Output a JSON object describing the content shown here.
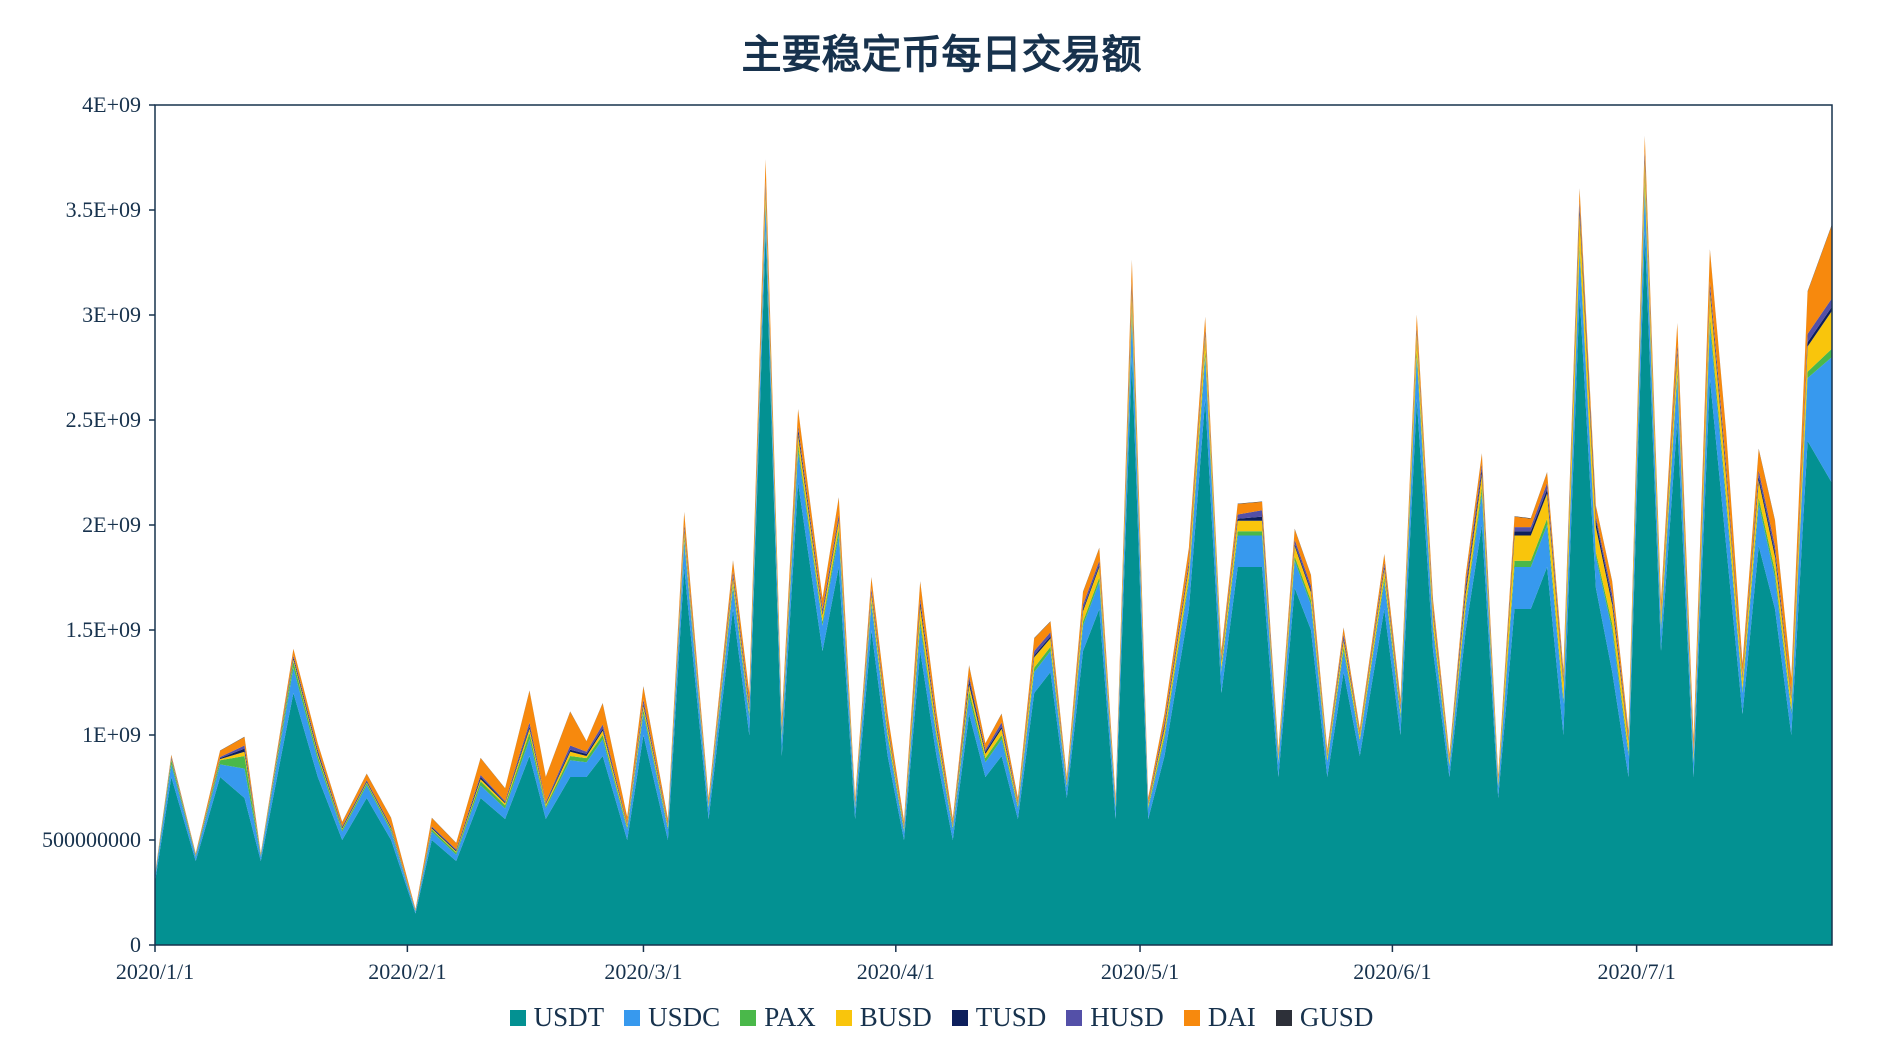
{
  "chart_data": {
    "type": "area",
    "stacked": true,
    "title": "主要稳定币每日交易额",
    "xlabel": "",
    "ylabel": "",
    "ylim": [
      0,
      4000000000
    ],
    "grid": false,
    "legend_position": "bottom",
    "y_ticks": [
      {
        "value": 0,
        "label": "0"
      },
      {
        "value": 500000000,
        "label": "500000000"
      },
      {
        "value": 1000000000,
        "label": "1E+09"
      },
      {
        "value": 1500000000,
        "label": "1.5E+09"
      },
      {
        "value": 2000000000,
        "label": "2E+09"
      },
      {
        "value": 2500000000,
        "label": "2.5E+09"
      },
      {
        "value": 3000000000,
        "label": "3E+09"
      },
      {
        "value": 3500000000,
        "label": "3.5E+09"
      },
      {
        "value": 4000000000,
        "label": "4E+09"
      }
    ],
    "x_ticks": [
      {
        "date": "2020-01-01",
        "label": "2020/1/1"
      },
      {
        "date": "2020-02-01",
        "label": "2020/2/1"
      },
      {
        "date": "2020-03-01",
        "label": "2020/3/1"
      },
      {
        "date": "2020-04-01",
        "label": "2020/4/1"
      },
      {
        "date": "2020-05-01",
        "label": "2020/5/1"
      },
      {
        "date": "2020-06-01",
        "label": "2020/6/1"
      },
      {
        "date": "2020-07-01",
        "label": "2020/7/1"
      }
    ],
    "x_start": "2020-01-01",
    "x_end": "2020-07-25",
    "value_unit": "1E+08",
    "x": [
      "2020-01-01",
      "2020-01-03",
      "2020-01-06",
      "2020-01-09",
      "2020-01-12",
      "2020-01-14",
      "2020-01-18",
      "2020-01-21",
      "2020-01-24",
      "2020-01-27",
      "2020-01-30",
      "2020-02-02",
      "2020-02-04",
      "2020-02-07",
      "2020-02-10",
      "2020-02-13",
      "2020-02-16",
      "2020-02-18",
      "2020-02-21",
      "2020-02-23",
      "2020-02-25",
      "2020-02-28",
      "2020-03-01",
      "2020-03-04",
      "2020-03-06",
      "2020-03-09",
      "2020-03-12",
      "2020-03-14",
      "2020-03-16",
      "2020-03-18",
      "2020-03-20",
      "2020-03-23",
      "2020-03-25",
      "2020-03-27",
      "2020-03-29",
      "2020-03-31",
      "2020-04-02",
      "2020-04-04",
      "2020-04-06",
      "2020-04-08",
      "2020-04-10",
      "2020-04-12",
      "2020-04-14",
      "2020-04-16",
      "2020-04-18",
      "2020-04-20",
      "2020-04-22",
      "2020-04-24",
      "2020-04-26",
      "2020-04-28",
      "2020-04-30",
      "2020-05-02",
      "2020-05-04",
      "2020-05-07",
      "2020-05-09",
      "2020-05-11",
      "2020-05-13",
      "2020-05-16",
      "2020-05-18",
      "2020-05-20",
      "2020-05-22",
      "2020-05-24",
      "2020-05-26",
      "2020-05-28",
      "2020-05-31",
      "2020-06-02",
      "2020-06-04",
      "2020-06-06",
      "2020-06-08",
      "2020-06-10",
      "2020-06-12",
      "2020-06-14",
      "2020-06-16",
      "2020-06-18",
      "2020-06-20",
      "2020-06-22",
      "2020-06-24",
      "2020-06-26",
      "2020-06-28",
      "2020-06-30",
      "2020-07-02",
      "2020-07-04",
      "2020-07-06",
      "2020-07-08",
      "2020-07-10",
      "2020-07-12",
      "2020-07-14",
      "2020-07-16",
      "2020-07-18",
      "2020-07-20",
      "2020-07-22",
      "2020-07-25"
    ],
    "series": [
      {
        "name": "USDT",
        "color": "#039192",
        "values": [
          3.0,
          8.0,
          4.0,
          8.0,
          7.0,
          4.0,
          12.0,
          8.0,
          5.0,
          7.0,
          5.0,
          1.5,
          5.0,
          4.0,
          7.0,
          6.0,
          9.0,
          6.0,
          8.0,
          8.0,
          9.0,
          5.0,
          10.0,
          5.0,
          18.0,
          6.0,
          16.0,
          10.0,
          34.0,
          9.0,
          22.0,
          14.0,
          18.0,
          6.0,
          15.0,
          9.0,
          5.0,
          14.0,
          9.0,
          5.0,
          11.0,
          8.0,
          9.0,
          6.0,
          12.0,
          13.0,
          7.0,
          14.0,
          16.0,
          6.0,
          28.0,
          6.0,
          9.0,
          16.0,
          26.0,
          12.0,
          18.0,
          18.0,
          8.0,
          17.0,
          15.0,
          8.0,
          13.0,
          9.0,
          16.0,
          10.0,
          26.0,
          14.0,
          8.0,
          15.0,
          20.0,
          7.0,
          16.0,
          16.0,
          18.0,
          10.0,
          31.0,
          17.0,
          13.0,
          8.0,
          34.0,
          14.0,
          25.0,
          8.0,
          27.0,
          19.0,
          11.0,
          19.0,
          16.0,
          10.0,
          24.0,
          22.0
        ]
      },
      {
        "name": "USDC",
        "color": "#3799ee",
        "values": [
          0.2,
          0.6,
          0.2,
          0.6,
          1.4,
          0.2,
          1.2,
          0.8,
          0.4,
          0.6,
          0.4,
          0.1,
          0.4,
          0.3,
          0.6,
          0.5,
          0.8,
          0.5,
          0.8,
          0.7,
          0.8,
          0.5,
          1.0,
          0.5,
          1.2,
          0.5,
          1.0,
          0.8,
          1.2,
          0.8,
          1.5,
          1.2,
          1.5,
          0.5,
          1.2,
          0.8,
          0.4,
          1.2,
          0.8,
          0.5,
          0.8,
          0.7,
          0.8,
          0.5,
          1.0,
          1.0,
          0.5,
          1.2,
          1.3,
          0.5,
          2.0,
          0.5,
          0.8,
          1.3,
          2.0,
          1.0,
          1.5,
          1.5,
          0.7,
          1.3,
          1.2,
          0.7,
          1.0,
          0.7,
          1.3,
          0.8,
          2.0,
          1.0,
          0.5,
          1.0,
          1.5,
          0.5,
          2.0,
          2.0,
          2.0,
          1.5,
          2.0,
          1.5,
          2.0,
          1.0,
          2.0,
          1.0,
          2.0,
          0.7,
          2.5,
          2.0,
          1.0,
          2.0,
          1.5,
          1.0,
          3.0,
          6.0
        ]
      },
      {
        "name": "PAX",
        "color": "#4ab84a",
        "values": [
          0.05,
          0.2,
          0.05,
          0.2,
          0.6,
          0.05,
          0.3,
          0.2,
          0.1,
          0.1,
          0.1,
          0.02,
          0.1,
          0.1,
          0.2,
          0.15,
          0.3,
          0.1,
          0.2,
          0.2,
          0.2,
          0.1,
          0.2,
          0.1,
          0.2,
          0.1,
          0.2,
          0.2,
          0.3,
          0.2,
          0.3,
          0.2,
          0.3,
          0.1,
          0.2,
          0.2,
          0.1,
          0.3,
          0.2,
          0.1,
          0.3,
          0.2,
          0.2,
          0.1,
          0.2,
          0.2,
          0.1,
          0.2,
          0.2,
          0.1,
          0.3,
          0.1,
          0.2,
          0.2,
          0.3,
          0.2,
          0.2,
          0.2,
          0.1,
          0.2,
          0.2,
          0.1,
          0.2,
          0.1,
          0.2,
          0.2,
          0.3,
          0.2,
          0.1,
          0.2,
          0.3,
          0.1,
          0.3,
          0.3,
          0.3,
          0.2,
          0.3,
          0.2,
          0.3,
          0.2,
          0.3,
          0.2,
          0.3,
          0.1,
          0.4,
          0.3,
          0.2,
          0.3,
          0.3,
          0.2,
          0.3,
          0.4
        ]
      },
      {
        "name": "BUSD",
        "color": "#f9c50c",
        "values": [
          0.02,
          0.05,
          0.02,
          0.05,
          0.2,
          0.02,
          0.1,
          0.1,
          0.05,
          0.05,
          0.05,
          0.01,
          0.05,
          0.05,
          0.1,
          0.1,
          0.2,
          0.1,
          0.2,
          0.1,
          0.2,
          0.1,
          0.2,
          0.1,
          0.3,
          0.1,
          0.3,
          0.2,
          0.5,
          0.2,
          0.5,
          0.3,
          0.4,
          0.1,
          0.3,
          0.3,
          0.1,
          0.6,
          0.3,
          0.1,
          0.3,
          0.2,
          0.3,
          0.1,
          0.5,
          0.4,
          0.1,
          0.5,
          0.5,
          0.1,
          0.8,
          0.1,
          0.3,
          0.5,
          0.7,
          0.3,
          0.5,
          0.5,
          0.2,
          0.5,
          0.4,
          0.2,
          0.3,
          0.2,
          0.4,
          0.2,
          0.8,
          0.5,
          0.2,
          0.5,
          0.6,
          0.2,
          1.2,
          1.2,
          1.2,
          0.8,
          1.5,
          1.2,
          0.9,
          0.5,
          1.0,
          0.5,
          0.8,
          0.3,
          1.2,
          1.0,
          0.5,
          0.8,
          0.7,
          0.5,
          1.2,
          1.8
        ]
      },
      {
        "name": "TUSD",
        "color": "#0d1f5c",
        "values": [
          0.02,
          0.05,
          0.02,
          0.05,
          0.15,
          0.02,
          0.1,
          0.1,
          0.05,
          0.05,
          0.05,
          0.01,
          0.05,
          0.05,
          0.1,
          0.05,
          0.1,
          0.05,
          0.1,
          0.1,
          0.1,
          0.05,
          0.1,
          0.05,
          0.1,
          0.05,
          0.1,
          0.1,
          0.2,
          0.1,
          0.2,
          0.1,
          0.1,
          0.05,
          0.1,
          0.1,
          0.05,
          0.2,
          0.1,
          0.05,
          0.2,
          0.1,
          0.1,
          0.05,
          0.1,
          0.1,
          0.05,
          0.1,
          0.1,
          0.05,
          0.2,
          0.05,
          0.1,
          0.1,
          0.1,
          0.1,
          0.1,
          0.2,
          0.05,
          0.1,
          0.1,
          0.05,
          0.1,
          0.05,
          0.1,
          0.1,
          0.1,
          0.1,
          0.05,
          0.2,
          0.2,
          0.05,
          0.2,
          0.2,
          0.2,
          0.1,
          0.3,
          0.3,
          0.2,
          0.1,
          0.2,
          0.1,
          0.2,
          0.1,
          0.2,
          0.2,
          0.1,
          0.2,
          0.2,
          0.1,
          0.2,
          0.2
        ]
      },
      {
        "name": "HUSD",
        "color": "#5450a8",
        "values": [
          0.02,
          0.05,
          0.02,
          0.05,
          0.15,
          0.02,
          0.1,
          0.1,
          0.05,
          0.05,
          0.05,
          0.01,
          0.05,
          0.05,
          0.1,
          0.05,
          0.2,
          0.05,
          0.2,
          0.1,
          0.2,
          0.05,
          0.2,
          0.05,
          0.2,
          0.05,
          0.2,
          0.2,
          0.2,
          0.1,
          0.2,
          0.2,
          0.2,
          0.05,
          0.2,
          0.1,
          0.05,
          0.2,
          0.2,
          0.05,
          0.2,
          0.1,
          0.2,
          0.05,
          0.2,
          0.2,
          0.05,
          0.2,
          0.2,
          0.05,
          0.3,
          0.05,
          0.2,
          0.2,
          0.2,
          0.1,
          0.2,
          0.3,
          0.05,
          0.2,
          0.2,
          0.05,
          0.2,
          0.05,
          0.2,
          0.1,
          0.2,
          0.2,
          0.05,
          0.3,
          0.3,
          0.05,
          0.2,
          0.2,
          0.3,
          0.2,
          0.3,
          0.2,
          0.3,
          0.1,
          0.3,
          0.1,
          0.3,
          0.1,
          0.3,
          0.3,
          0.1,
          0.3,
          0.3,
          0.1,
          0.4,
          0.4
        ]
      },
      {
        "name": "DAI",
        "color": "#f7890d",
        "values": [
          0.05,
          0.1,
          0.05,
          0.3,
          0.4,
          0.05,
          0.3,
          0.3,
          0.2,
          0.3,
          0.4,
          0.05,
          0.4,
          0.3,
          0.8,
          0.6,
          1.5,
          1.2,
          1.6,
          0.5,
          1.0,
          0.3,
          0.6,
          0.2,
          0.6,
          0.2,
          0.5,
          0.5,
          1.0,
          0.4,
          0.8,
          0.5,
          0.8,
          0.2,
          0.5,
          0.5,
          0.2,
          0.8,
          0.5,
          0.2,
          0.5,
          0.3,
          0.4,
          0.2,
          0.6,
          0.5,
          0.2,
          0.6,
          0.6,
          0.2,
          1.0,
          0.2,
          0.4,
          0.6,
          0.6,
          0.3,
          0.5,
          0.4,
          0.2,
          0.5,
          0.5,
          0.2,
          0.3,
          0.2,
          0.4,
          0.3,
          0.6,
          0.4,
          0.2,
          0.4,
          0.5,
          0.2,
          0.5,
          0.4,
          0.5,
          0.3,
          0.6,
          0.5,
          0.6,
          0.3,
          0.7,
          0.5,
          1.0,
          0.5,
          1.5,
          1.6,
          0.5,
          1.0,
          1.2,
          0.8,
          2.0,
          3.5
        ]
      },
      {
        "name": "GUSD",
        "color": "#2d3039",
        "values": [
          0.01,
          0.01,
          0.01,
          0.01,
          0.02,
          0.01,
          0.01,
          0.01,
          0.01,
          0.01,
          0.01,
          0.01,
          0.01,
          0.01,
          0.01,
          0.01,
          0.02,
          0.01,
          0.02,
          0.01,
          0.02,
          0.01,
          0.02,
          0.01,
          0.02,
          0.01,
          0.02,
          0.01,
          0.02,
          0.01,
          0.02,
          0.01,
          0.02,
          0.01,
          0.02,
          0.01,
          0.01,
          0.02,
          0.01,
          0.01,
          0.02,
          0.01,
          0.02,
          0.01,
          0.02,
          0.02,
          0.01,
          0.02,
          0.02,
          0.01,
          0.03,
          0.01,
          0.02,
          0.02,
          0.02,
          0.01,
          0.02,
          0.02,
          0.01,
          0.02,
          0.02,
          0.01,
          0.02,
          0.01,
          0.02,
          0.01,
          0.02,
          0.02,
          0.01,
          0.02,
          0.02,
          0.01,
          0.02,
          0.02,
          0.02,
          0.02,
          0.03,
          0.02,
          0.02,
          0.01,
          0.03,
          0.02,
          0.02,
          0.01,
          0.03,
          0.03,
          0.02,
          0.03,
          0.03,
          0.02,
          0.03,
          0.03
        ]
      }
    ]
  }
}
